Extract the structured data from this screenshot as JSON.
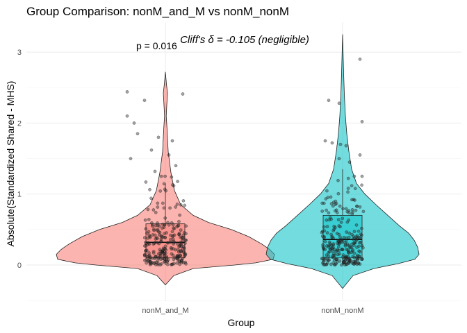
{
  "chart_data": {
    "type": "violin",
    "title": "Group Comparison: nonM_and_M vs nonM_nonM",
    "xlabel": "Group",
    "ylabel": "Absolute(Standardized Shared - MHS)",
    "categories": [
      "nonM_and_M",
      "nonM_nonM"
    ],
    "y_ticks": [
      0,
      1,
      2,
      3
    ],
    "ylim": [
      -0.5,
      3.3
    ],
    "grid": true,
    "colors": {
      "nonM_and_M": "#F8766D",
      "nonM_nonM": "#00BFC4"
    },
    "groups": [
      {
        "name": "nonM_and_M",
        "min": -0.28,
        "q1": 0.1,
        "median": 0.32,
        "q3": 0.58,
        "max": 2.72,
        "whisker_low": 0.0,
        "whisker_high": 1.15
      },
      {
        "name": "nonM_nonM",
        "min": -0.33,
        "q1": 0.1,
        "median": 0.36,
        "q3": 0.7,
        "max": 3.25,
        "whisker_low": 0.0,
        "whisker_high": 1.35
      }
    ],
    "annotations": {
      "p_value": "p = 0.016",
      "effect": "Cliff's δ = -0.105 (negligible)"
    }
  }
}
